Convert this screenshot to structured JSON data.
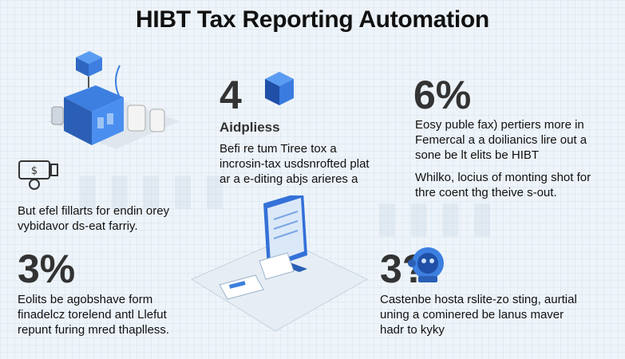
{
  "title": "HIBT Tax Reporting Automation",
  "stat_top_middle": {
    "value": "4",
    "label": "Aidpliess",
    "lines": [
      "Befi re tum Tiree tox a",
      "incrosin-tax usdsnrofted plat",
      "ar a e-diting abjs arieres a"
    ]
  },
  "stat_top_right": {
    "value": "6%",
    "lines": [
      "Eosy puble fax) pertiers more in",
      "Femercal a a doilianics lire out a",
      "sone be lt elits be HIBT"
    ],
    "lines2": [
      "Whilko, locius of monting shot for",
      "thre coent thg theive s-out."
    ]
  },
  "left_block": {
    "lines": [
      "But efel fillarts for endin orey",
      "vybidavor ds-eat farriy."
    ]
  },
  "stat_bottom_left": {
    "value": "3%",
    "lines": [
      "Eolits be agobshave form",
      "finadelcz torelend antl Llefut",
      "repunt furing mred thaplless."
    ]
  },
  "stat_bottom_right": {
    "value": "3?",
    "lines": [
      "Castenbe hosta rslite-zo sting, aurtial",
      "uning a cominered be lanus maver",
      "hadr to kyky"
    ]
  },
  "icons": {
    "server": "server-cluster-icon",
    "cube": "cube-icon",
    "wallet": "wallet-icon",
    "monitor": "monitor-icon",
    "security": "security-robot-icon"
  },
  "colors": {
    "accent": "#2f6fd6",
    "title": "#111111"
  }
}
